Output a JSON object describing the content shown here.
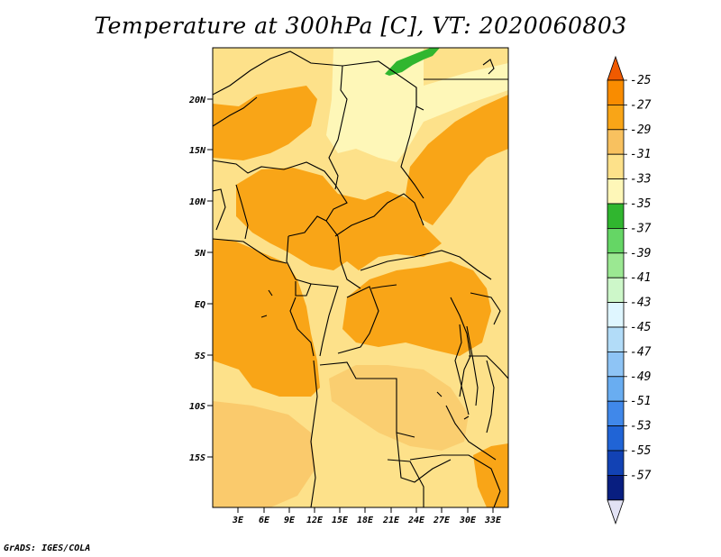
{
  "title": "Temperature at 300hPa [C], VT: 2020060803",
  "credit": "GrADS: IGES/COLA",
  "map": {
    "lat_labels": [
      "20N",
      "15N",
      "10N",
      "5N",
      "EQ",
      "5S",
      "10S",
      "15S"
    ],
    "lon_labels": [
      "3E",
      "6E",
      "9E",
      "12E",
      "15E",
      "18E",
      "21E",
      "24E",
      "27E",
      "30E",
      "33E"
    ]
  },
  "colorbar": {
    "levels": [
      "-25",
      "-27",
      "-29",
      "-31",
      "-33",
      "-35",
      "-37",
      "-39",
      "-41",
      "-43",
      "-45",
      "-47",
      "-49",
      "-51",
      "-53",
      "-55",
      "-57"
    ],
    "colors": [
      "#f05a00",
      "#f98c00",
      "#f9a517",
      "#f8c15f",
      "#fde18a",
      "#fef7b8",
      "#30b62f",
      "#65d665",
      "#9be892",
      "#cdf7c9",
      "#dff6ff",
      "#b2dcf8",
      "#8ec4f5",
      "#69adf1",
      "#4088ea",
      "#2064d6",
      "#1242b4",
      "#081e80",
      "#e2e2f4"
    ]
  }
}
